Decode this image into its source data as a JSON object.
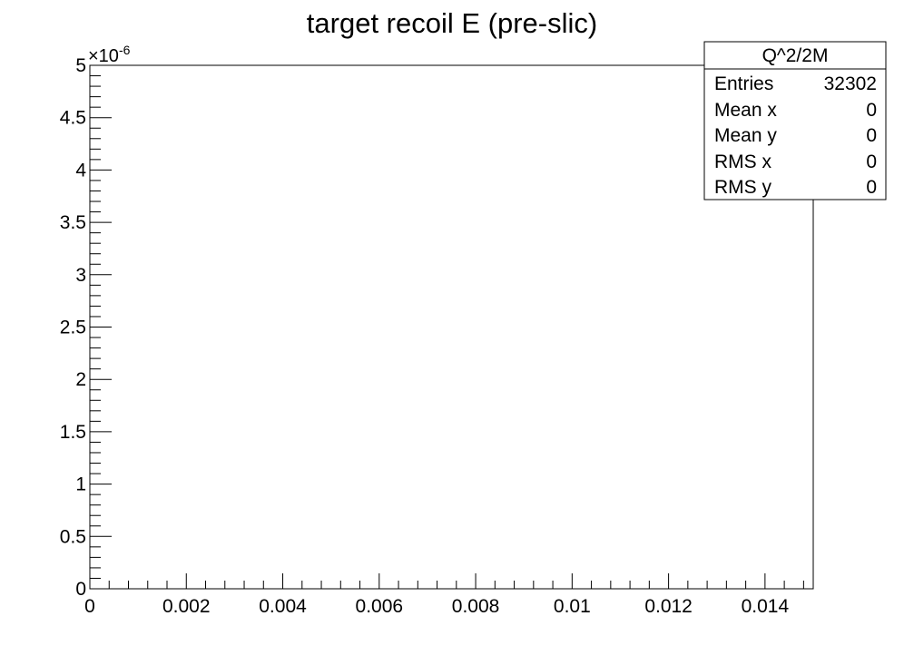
{
  "chart_data": {
    "type": "scatter",
    "title": "target recoil E (pre-slic)",
    "xlabel": "",
    "ylabel": "",
    "xlim": [
      0,
      0.015
    ],
    "ylim": [
      0,
      5e-06
    ],
    "x_ticks": [
      {
        "value": 0,
        "label": "0"
      },
      {
        "value": 0.002,
        "label": "0.002"
      },
      {
        "value": 0.004,
        "label": "0.004"
      },
      {
        "value": 0.006,
        "label": "0.006"
      },
      {
        "value": 0.008,
        "label": "0.008"
      },
      {
        "value": 0.01,
        "label": "0.01"
      },
      {
        "value": 0.012,
        "label": "0.012"
      },
      {
        "value": 0.014,
        "label": "0.014"
      }
    ],
    "y_ticks": [
      {
        "value": 0,
        "label": "0"
      },
      {
        "value": 5e-07,
        "label": "0.5"
      },
      {
        "value": 1e-06,
        "label": "1"
      },
      {
        "value": 1.5e-06,
        "label": "1.5"
      },
      {
        "value": 2e-06,
        "label": "2"
      },
      {
        "value": 2.5e-06,
        "label": "2.5"
      },
      {
        "value": 3e-06,
        "label": "3"
      },
      {
        "value": 3.5e-06,
        "label": "3.5"
      },
      {
        "value": 4e-06,
        "label": "4"
      },
      {
        "value": 4.5e-06,
        "label": "4.5"
      },
      {
        "value": 5e-06,
        "label": "5"
      }
    ],
    "y_exponent": {
      "base": "×10",
      "power": "-6"
    },
    "series": [],
    "grid": false,
    "stats_box": {
      "title": "Q^2/2M",
      "placement": "top-right",
      "rows": [
        {
          "label": "Entries",
          "value": "32302"
        },
        {
          "label": "Mean x",
          "value": "0"
        },
        {
          "label": "Mean y",
          "value": "0"
        },
        {
          "label": "RMS x",
          "value": "0"
        },
        {
          "label": "RMS y",
          "value": "0"
        }
      ]
    }
  }
}
